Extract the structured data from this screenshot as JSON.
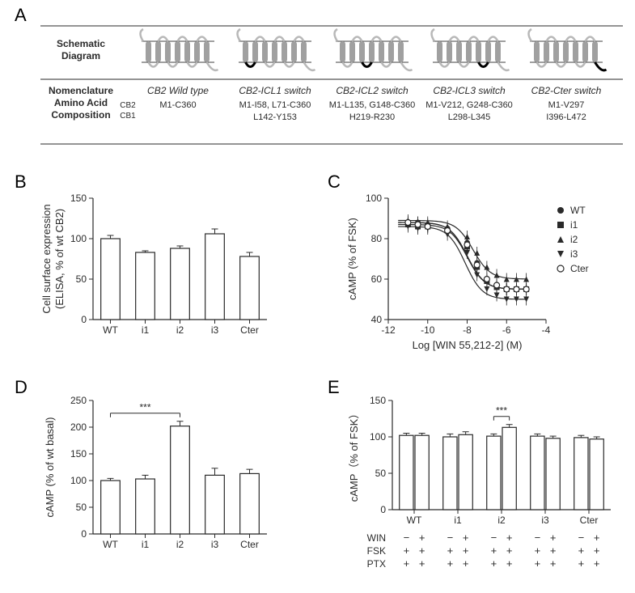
{
  "panelA": {
    "label": "A",
    "row1_label": "Schematic Diagram",
    "row2_label1": "Nomenclature",
    "row2_label2": "Amino Acid",
    "row2_label3": "Composition",
    "cb2_label": "CB2",
    "cb1_label": "CB1",
    "constructs": [
      {
        "title": "CB2 Wild type",
        "cb2": "M1-C360",
        "cb1": "",
        "dark_loop": -1
      },
      {
        "title": "CB2-ICL1 switch",
        "cb2": "M1-I58, L71-C360",
        "cb1": "L142-Y153",
        "dark_loop": 0
      },
      {
        "title": "CB2-ICL2 switch",
        "cb2": "M1-L135, G148-C360",
        "cb1": "H219-R230",
        "dark_loop": 2
      },
      {
        "title": "CB2-ICL3 switch",
        "cb2": "M1-V212, G248-C360",
        "cb1": "L298-L345",
        "dark_loop": 4
      },
      {
        "title": "CB2-Cter switch",
        "cb2": "M1-V297",
        "cb1": "I396-L472",
        "dark_loop": 6
      }
    ],
    "colors": {
      "membrane_line": "#000000",
      "helix": "#a0a0a0",
      "loop": "#b8b8b8",
      "dark": "#000000",
      "text": "#2a2a2a"
    },
    "fontsize_labels": 12,
    "fontsize_italic": 12
  },
  "panelB": {
    "label": "B",
    "ylabel1": "Cell surface expression",
    "ylabel2": "(ELISA, % of wt CB2)",
    "categories": [
      "WT",
      "i1",
      "i2",
      "i3",
      "Cter"
    ],
    "values": [
      100,
      83,
      88,
      106,
      78
    ],
    "err": [
      4,
      2,
      3,
      6,
      5
    ],
    "ylim": [
      0,
      150
    ],
    "yticks": [
      0,
      50,
      100,
      150
    ],
    "bar_fill": "#ffffff",
    "bar_stroke": "#2a2a2a",
    "axis_color": "#2a2a2a",
    "text_color": "#2a2a2a",
    "label_fontsize": 13,
    "tick_fontsize": 12
  },
  "panelC": {
    "label": "C",
    "ylabel": "cAMP (% of FSK)",
    "xlabel": "Log [WIN 55,212-2] (M)",
    "legend": [
      "WT",
      "i1",
      "i2",
      "i3",
      "Cter"
    ],
    "markers": [
      "circle-filled",
      "square-filled",
      "triangle-up-filled",
      "triangle-down-filled",
      "circle-open"
    ],
    "xlim": [
      -12,
      -4
    ],
    "xticks": [
      -12,
      -10,
      -8,
      -6,
      -4
    ],
    "ylim": [
      40,
      100
    ],
    "yticks": [
      40,
      60,
      80,
      100
    ],
    "series": [
      {
        "x": [
          -11,
          -10.5,
          -10,
          -9,
          -8,
          -7.5,
          -7,
          -6.5,
          -6,
          -5.5,
          -5
        ],
        "y": [
          88,
          88,
          87,
          85,
          78,
          68,
          60,
          56,
          55,
          55,
          55
        ],
        "ec50": -8.0,
        "top": 88,
        "bottom": 55
      },
      {
        "x": [
          -11,
          -10.5,
          -10,
          -9,
          -8,
          -7.5,
          -7,
          -6.5,
          -6,
          -5.5,
          -5
        ],
        "y": [
          87,
          86,
          86,
          84,
          76,
          66,
          59,
          56,
          55,
          55,
          55
        ],
        "ec50": -8.0,
        "top": 87,
        "bottom": 55
      },
      {
        "x": [
          -11,
          -10.5,
          -10,
          -9,
          -8,
          -7.5,
          -7,
          -6.5,
          -6,
          -5.5,
          -5
        ],
        "y": [
          89,
          88,
          88,
          86,
          81,
          73,
          66,
          62,
          60,
          60,
          60
        ],
        "ec50": -7.7,
        "top": 89,
        "bottom": 60
      },
      {
        "x": [
          -11,
          -10.5,
          -10,
          -9,
          -8,
          -7.5,
          -7,
          -6.5,
          -6,
          -5.5,
          -5
        ],
        "y": [
          86,
          85,
          85,
          82,
          73,
          62,
          55,
          52,
          50,
          50,
          50
        ],
        "ec50": -8.1,
        "top": 86,
        "bottom": 50
      },
      {
        "x": [
          -11,
          -10.5,
          -10,
          -9,
          -8,
          -7.5,
          -7,
          -6.5,
          -6,
          -5.5,
          -5
        ],
        "y": [
          88,
          87,
          86,
          84,
          77,
          67,
          60,
          57,
          55,
          55,
          55
        ],
        "ec50": -8.0,
        "top": 88,
        "bottom": 55
      }
    ],
    "err": 3,
    "axis_color": "#2a2a2a",
    "marker_color": "#2a2a2a",
    "text_color": "#2a2a2a",
    "label_fontsize": 13,
    "tick_fontsize": 12,
    "legend_fontsize": 12
  },
  "panelD": {
    "label": "D",
    "ylabel": "cAMP (% of wt basal)",
    "categories": [
      "WT",
      "i1",
      "i2",
      "i3",
      "Cter"
    ],
    "values": [
      100,
      103,
      202,
      110,
      113
    ],
    "err": [
      4,
      7,
      9,
      13,
      8
    ],
    "ylim": [
      0,
      250
    ],
    "yticks": [
      0,
      50,
      100,
      150,
      200,
      250
    ],
    "sig_from": 0,
    "sig_to": 2,
    "sig_label": "***",
    "bar_fill": "#ffffff",
    "bar_stroke": "#2a2a2a",
    "axis_color": "#2a2a2a",
    "text_color": "#2a2a2a",
    "label_fontsize": 13,
    "tick_fontsize": 12
  },
  "panelE": {
    "label": "E",
    "ylabel": "cAMP（% of FSK）",
    "groups": [
      "WT",
      "i1",
      "i2",
      "i3",
      "Cter"
    ],
    "row_labels": [
      "WIN",
      "FSK",
      "PTX"
    ],
    "rows": [
      [
        "−",
        "+",
        "−",
        "+",
        "−",
        "+",
        "−",
        "+",
        "−",
        "+"
      ],
      [
        "+",
        "+",
        "+",
        "+",
        "+",
        "+",
        "+",
        "+",
        "+",
        "+"
      ],
      [
        "+",
        "+",
        "+",
        "+",
        "+",
        "+",
        "+",
        "+",
        "+",
        "+"
      ]
    ],
    "values": [
      102,
      102,
      100,
      103,
      101,
      113,
      101,
      98,
      99,
      97
    ],
    "err": [
      3,
      3,
      4,
      4,
      3,
      4,
      3,
      3,
      3,
      3
    ],
    "ylim": [
      0,
      150
    ],
    "yticks": [
      0,
      50,
      100,
      150
    ],
    "sig_from": 4,
    "sig_to": 5,
    "sig_label": "***",
    "bar_fill": "#ffffff",
    "bar_stroke": "#2a2a2a",
    "axis_color": "#2a2a2a",
    "text_color": "#2a2a2a",
    "label_fontsize": 13,
    "tick_fontsize": 12
  }
}
